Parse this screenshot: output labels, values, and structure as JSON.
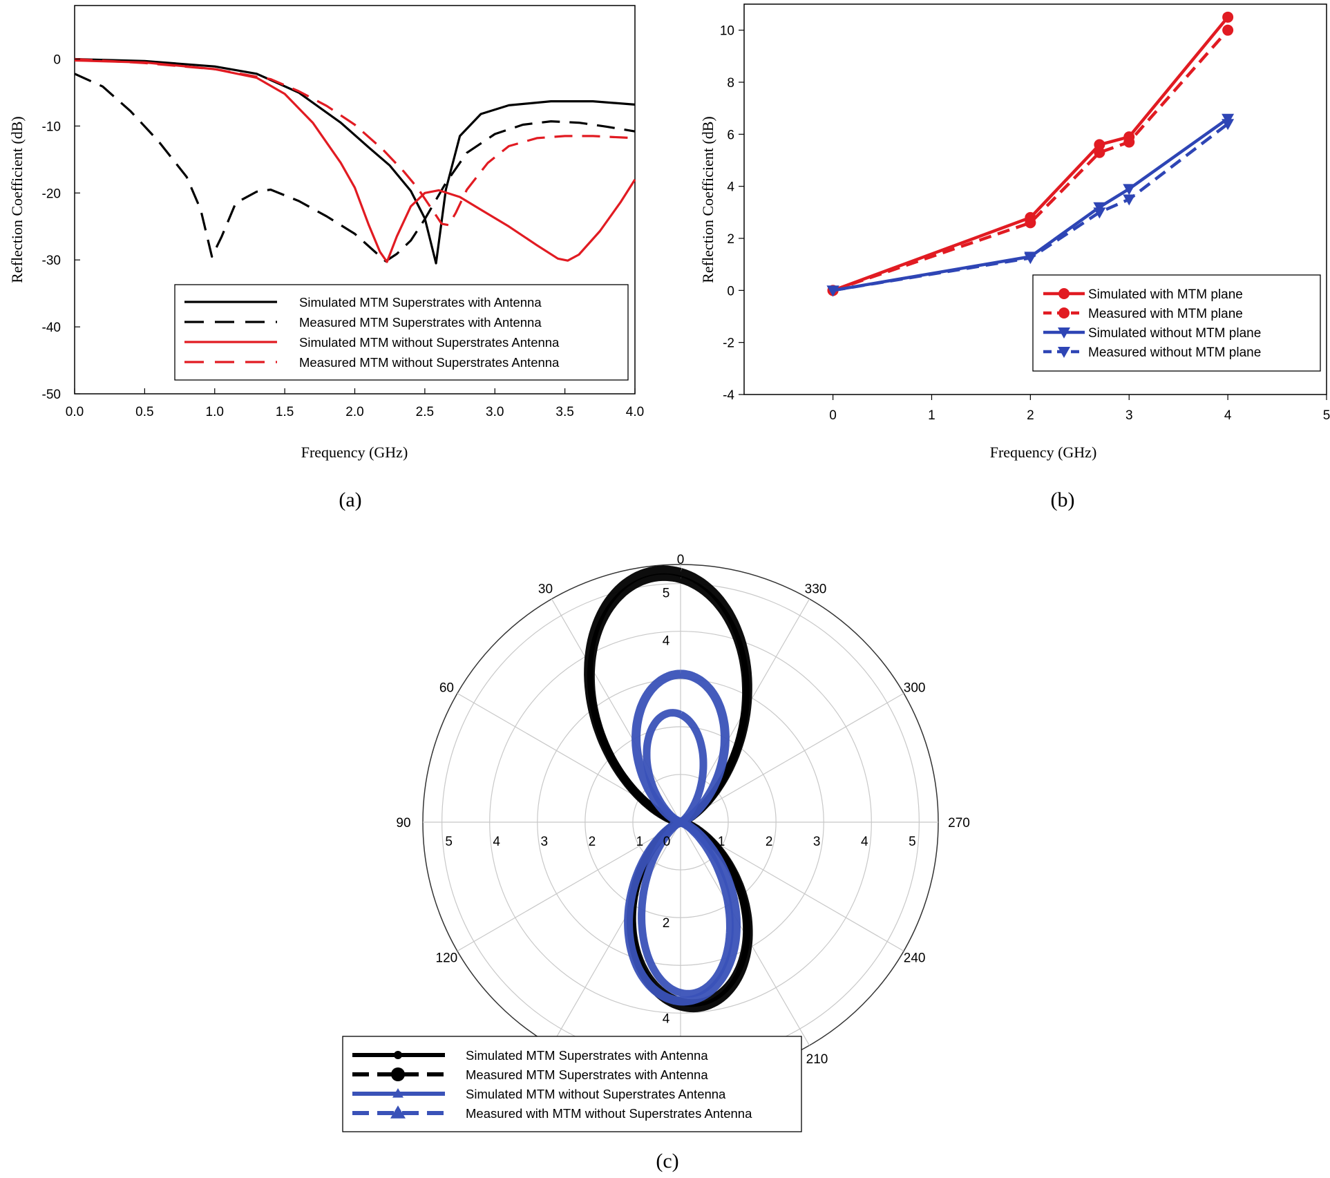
{
  "figure": {
    "labels": [
      "(a)",
      "(b)",
      "(c)"
    ]
  },
  "chart_data": [
    {
      "id": "a",
      "type": "line",
      "title": "",
      "xlabel": "Frequency (GHz)",
      "ylabel": "Reflection Coefficient (dB)",
      "xlim": [
        0,
        4
      ],
      "ylim": [
        -50,
        8
      ],
      "xticks": [
        "0.0",
        "0.5",
        "1.0",
        "1.5",
        "2.0",
        "2.5",
        "3.0",
        "3.5",
        "4.0"
      ],
      "yticks": [
        "0",
        "-10",
        "-20",
        "-30",
        "-40",
        "-50"
      ],
      "legend_position": "bottom-right",
      "series": [
        {
          "name": "Simulated MTM Superstrates with Antenna",
          "color": "#000000",
          "dash": "solid",
          "x": [
            0,
            0.5,
            1.0,
            1.3,
            1.6,
            1.9,
            2.1,
            2.25,
            2.4,
            2.5,
            2.58,
            2.65,
            2.75,
            2.9,
            3.1,
            3.4,
            3.7,
            4.0
          ],
          "y": [
            0,
            -0.3,
            -1.1,
            -2.2,
            -5,
            -9.5,
            -13.2,
            -15.9,
            -19.7,
            -23.8,
            -30.5,
            -19.5,
            -11.5,
            -8.2,
            -6.9,
            -6.3,
            -6.3,
            -6.8
          ]
        },
        {
          "name": "Measured MTM Superstrates with Antenna",
          "color": "#000000",
          "dash": "dashed",
          "x": [
            0,
            0.2,
            0.4,
            0.6,
            0.8,
            0.9,
            0.98,
            1.05,
            1.15,
            1.3,
            1.4,
            1.6,
            1.8,
            2.0,
            2.15,
            2.22,
            2.3,
            2.4,
            2.5,
            2.65,
            2.8,
            3.0,
            3.2,
            3.4,
            3.6,
            3.8,
            4.0
          ],
          "y": [
            -2.2,
            -4.1,
            -7.8,
            -12.3,
            -17.6,
            -22.5,
            -29.5,
            -26.5,
            -21.5,
            -19.8,
            -19.5,
            -21.2,
            -23.5,
            -26.1,
            -28.9,
            -30.2,
            -29.1,
            -27.1,
            -23.9,
            -18.5,
            -14,
            -11.2,
            -9.8,
            -9.3,
            -9.5,
            -10.1,
            -10.8
          ]
        },
        {
          "name": "Simulated MTM without Superstrates Antenna",
          "color": "#e11b22",
          "dash": "solid",
          "x": [
            0,
            0.5,
            1.0,
            1.3,
            1.5,
            1.7,
            1.9,
            2.0,
            2.1,
            2.18,
            2.23,
            2.3,
            2.4,
            2.5,
            2.6,
            2.75,
            2.9,
            3.1,
            3.3,
            3.45,
            3.52,
            3.6,
            3.75,
            3.9,
            4.0
          ],
          "y": [
            -0.2,
            -0.5,
            -1.5,
            -2.8,
            -5.2,
            -9.5,
            -15.5,
            -19.2,
            -24.8,
            -28.8,
            -30.3,
            -26.5,
            -22,
            -20,
            -19.6,
            -20.6,
            -22.5,
            -25,
            -27.8,
            -29.8,
            -30.1,
            -29.2,
            -25.7,
            -21.3,
            -18
          ]
        },
        {
          "name": "Measured MTM without Superstrates Antenna",
          "color": "#e11b22",
          "dash": "dashed",
          "x": [
            0,
            0.5,
            1.0,
            1.4,
            1.6,
            1.8,
            2.0,
            2.2,
            2.35,
            2.45,
            2.55,
            2.62,
            2.67,
            2.72,
            2.8,
            2.95,
            3.1,
            3.3,
            3.5,
            3.7,
            3.9,
            4.0
          ],
          "y": [
            0,
            -0.6,
            -1.5,
            -3.0,
            -4.8,
            -7,
            -9.8,
            -13.5,
            -16.8,
            -19.3,
            -22.4,
            -24.6,
            -24.8,
            -23,
            -19.5,
            -15.5,
            -13,
            -11.8,
            -11.5,
            -11.5,
            -11.7,
            -11.8
          ]
        }
      ]
    },
    {
      "id": "b",
      "type": "line",
      "title": "",
      "xlabel": "Frequency (GHz)",
      "ylabel": "Reflection Coefficient (dB)",
      "xlim": [
        -0.9,
        5
      ],
      "ylim": [
        -4,
        11
      ],
      "xticks": [
        "0",
        "1",
        "2",
        "3",
        "4",
        "5"
      ],
      "yticks": [
        "-4",
        "-2",
        "0",
        "2",
        "4",
        "6",
        "8",
        "10"
      ],
      "legend_position": "bottom-right",
      "series": [
        {
          "name": "Simulated with MTM plane",
          "color": "#e11b22",
          "dash": "solid",
          "marker": "circle",
          "x": [
            0,
            2,
            2.7,
            3,
            4
          ],
          "y": [
            0,
            2.8,
            5.6,
            5.9,
            10.5
          ]
        },
        {
          "name": "Measured with MTM plane",
          "color": "#e11b22",
          "dash": "dashed",
          "marker": "circle",
          "x": [
            0,
            2,
            2.7,
            3,
            4
          ],
          "y": [
            0,
            2.6,
            5.3,
            5.7,
            10.0
          ]
        },
        {
          "name": "Simulated without MTM plane",
          "color": "#2e45b5",
          "dash": "solid",
          "marker": "triangle-down",
          "x": [
            0,
            2,
            2.7,
            3,
            4
          ],
          "y": [
            0,
            1.3,
            3.2,
            3.9,
            6.6
          ]
        },
        {
          "name": "Measured without MTM plane",
          "color": "#2e45b5",
          "dash": "dashed",
          "marker": "triangle-down",
          "x": [
            0,
            2,
            2.7,
            3,
            4
          ],
          "y": [
            0,
            1.25,
            3.0,
            3.5,
            6.4
          ]
        }
      ]
    },
    {
      "id": "c",
      "type": "polar",
      "title": "",
      "rlim": [
        0,
        5.4
      ],
      "angle_labels": [
        "0",
        "30",
        "60",
        "90",
        "120",
        "210",
        "240",
        "270",
        "300",
        "330"
      ],
      "horizontal_radius_labels": [
        "5",
        "4",
        "3",
        "2",
        "1",
        "0",
        "1",
        "2",
        "3",
        "4",
        "5"
      ],
      "vertical_radius_labels": [
        "5",
        "4",
        "2",
        "4"
      ],
      "legend_position": "bottom-left",
      "series": [
        {
          "name": "Simulated MTM Superstrates with Antenna",
          "color": "#000000",
          "dash": "solid",
          "marker": "circle",
          "pattern": "figure-eight",
          "upper_lobe_max": 5.3,
          "upper_lobe_angle_deg": 5,
          "lower_lobe_max": 3.9,
          "lower_lobe_angle_deg": 185,
          "lobe_width": 0.22
        },
        {
          "name": "Measured MTM Superstrates with Antenna",
          "color": "#000000",
          "dash": "dashed",
          "marker": "circle",
          "pattern": "figure-eight",
          "upper_lobe_max": 5.15,
          "upper_lobe_angle_deg": 5,
          "lower_lobe_max": 3.8,
          "lower_lobe_angle_deg": 185,
          "lobe_width": 0.22
        },
        {
          "name": "Simulated MTM without Superstrates Antenna",
          "color": "#3a52b8",
          "dash": "solid",
          "marker": "triangle",
          "pattern": "figure-eight",
          "upper_lobe_max": 3.1,
          "upper_lobe_angle_deg": 0,
          "lower_lobe_max": 3.75,
          "lower_lobe_angle_deg": 181,
          "lobe_width": 0.2
        },
        {
          "name": "Measured with MTM without Superstrates Antenna",
          "color": "#3a52b8",
          "dash": "dashed",
          "marker": "triangle",
          "pattern": "figure-eight",
          "upper_lobe_max": 2.3,
          "upper_lobe_angle_deg": 5,
          "lower_lobe_max": 3.6,
          "lower_lobe_angle_deg": 183,
          "lobe_width": 0.14
        }
      ]
    }
  ]
}
